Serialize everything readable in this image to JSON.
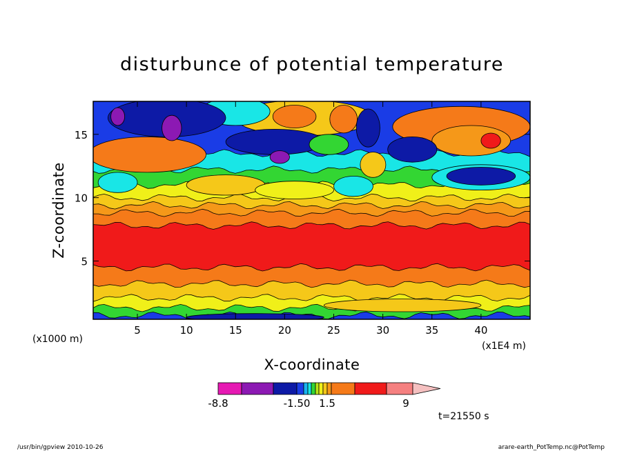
{
  "chart_data": {
    "type": "heatmap",
    "title": "disturbunce of potential temperature",
    "xlabel": "X-coordinate",
    "ylabel": "Z-coordinate",
    "x_unit_label": "(x1E4 m)",
    "y_unit_label": "(x1000 m)",
    "xlim": [
      0.5,
      45
    ],
    "ylim": [
      0.4,
      17.6
    ],
    "x_ticks": [
      "5",
      "10",
      "15",
      "20",
      "25",
      "30",
      "35",
      "40"
    ],
    "y_ticks": [
      "5",
      "10",
      "15"
    ],
    "colorbar": {
      "labels": [
        "-8.8",
        "-1.50",
        "1.5",
        "9"
      ],
      "colors": [
        "#e619b3",
        "#8c19b3",
        "#0d1aa6",
        "#1a3ce6",
        "#1ab3f0",
        "#19e6e6",
        "#33d633",
        "#b8e619",
        "#f0f019",
        "#f5c819",
        "#f59819",
        "#f57a19",
        "#f01a1a",
        "#f58080",
        "#f5c0c0"
      ]
    },
    "bands": [
      {
        "z0": 0.4,
        "z1": 0.7,
        "color": "#1a3ce6"
      },
      {
        "z0": 0.7,
        "z1": 1.3,
        "color": "#33d633"
      },
      {
        "z0": 1.3,
        "z1": 2.1,
        "color": "#f0f019"
      },
      {
        "z0": 2.1,
        "z1": 3.2,
        "color": "#f5c819"
      },
      {
        "z0": 3.2,
        "z1": 4.5,
        "color": "#f57a19"
      },
      {
        "z0": 4.5,
        "z1": 7.8,
        "color": "#f01a1a"
      },
      {
        "z0": 7.8,
        "z1": 8.8,
        "color": "#f57a19"
      },
      {
        "z0": 8.8,
        "z1": 9.4,
        "color": "#f59819"
      },
      {
        "z0": 9.4,
        "z1": 10.0,
        "color": "#f5c819"
      },
      {
        "z0": 10.0,
        "z1": 11.0,
        "color": "#f0f019"
      },
      {
        "z0": 11.0,
        "z1": 12.2,
        "color": "#33d633"
      },
      {
        "z0": 12.2,
        "z1": 13.5,
        "color": "#19e6e6"
      },
      {
        "z0": 13.5,
        "z1": 17.6,
        "color": "#1a3ce6"
      }
    ],
    "blobs": [
      {
        "x": 6,
        "z": 13.4,
        "rx": 6,
        "rz": 1.4,
        "color": "#f57a19"
      },
      {
        "x": 3,
        "z": 11.2,
        "rx": 2,
        "rz": 0.8,
        "color": "#19e6e6"
      },
      {
        "x": 14,
        "z": 11.0,
        "rx": 4,
        "rz": 0.8,
        "color": "#f5c819"
      },
      {
        "x": 21,
        "z": 10.6,
        "rx": 4,
        "rz": 0.7,
        "color": "#f0f019"
      },
      {
        "x": 27,
        "z": 10.9,
        "rx": 2,
        "rz": 0.8,
        "color": "#19e6e6"
      },
      {
        "x": 40,
        "z": 11.6,
        "rx": 5,
        "rz": 1.0,
        "color": "#19e6e6"
      },
      {
        "x": 40,
        "z": 11.7,
        "rx": 3.5,
        "rz": 0.7,
        "color": "#0d1aa6"
      },
      {
        "x": 22,
        "z": 16.3,
        "rx": 7,
        "rz": 1.4,
        "color": "#f5c819"
      },
      {
        "x": 21,
        "z": 16.4,
        "rx": 2.2,
        "rz": 0.9,
        "color": "#f57a19"
      },
      {
        "x": 26,
        "z": 16.2,
        "rx": 1.4,
        "rz": 1.1,
        "color": "#f57a19"
      },
      {
        "x": 29,
        "z": 12.6,
        "rx": 1.3,
        "rz": 1.0,
        "color": "#f5c819"
      },
      {
        "x": 15,
        "z": 16.8,
        "rx": 3.5,
        "rz": 1.1,
        "color": "#19e6e6"
      },
      {
        "x": 8,
        "z": 16.3,
        "rx": 6,
        "rz": 1.5,
        "color": "#0d1aa6"
      },
      {
        "x": 3,
        "z": 16.4,
        "rx": 0.7,
        "rz": 0.7,
        "color": "#8c19b3"
      },
      {
        "x": 8.5,
        "z": 15.5,
        "rx": 1.0,
        "rz": 1.0,
        "color": "#8c19b3"
      },
      {
        "x": 19,
        "z": 14.4,
        "rx": 5,
        "rz": 1.0,
        "color": "#0d1aa6"
      },
      {
        "x": 19.5,
        "z": 13.2,
        "rx": 1.0,
        "rz": 0.5,
        "color": "#8c19b3"
      },
      {
        "x": 28.5,
        "z": 15.5,
        "rx": 1.2,
        "rz": 1.5,
        "color": "#0d1aa6"
      },
      {
        "x": 38,
        "z": 15.6,
        "rx": 7,
        "rz": 1.6,
        "color": "#f57a19"
      },
      {
        "x": 39,
        "z": 14.5,
        "rx": 4,
        "rz": 1.2,
        "color": "#f59819"
      },
      {
        "x": 41,
        "z": 14.5,
        "rx": 1.0,
        "rz": 0.6,
        "color": "#f01a1a"
      },
      {
        "x": 33,
        "z": 13.8,
        "rx": 2.5,
        "rz": 1.0,
        "color": "#0d1aa6"
      },
      {
        "x": 24.5,
        "z": 14.2,
        "rx": 2.0,
        "rz": 0.8,
        "color": "#33d633"
      },
      {
        "x": 17,
        "z": 0.55,
        "rx": 7,
        "rz": 0.3,
        "color": "#0d1aa6"
      },
      {
        "x": 32,
        "z": 1.5,
        "rx": 8,
        "rz": 0.5,
        "color": "#f5c819"
      }
    ]
  },
  "time_label": "t=21550 s",
  "footer": {
    "left": "/usr/bin/gpview   2010-10-26",
    "right": "arare-earth_PotTemp.nc@PotTemp"
  }
}
